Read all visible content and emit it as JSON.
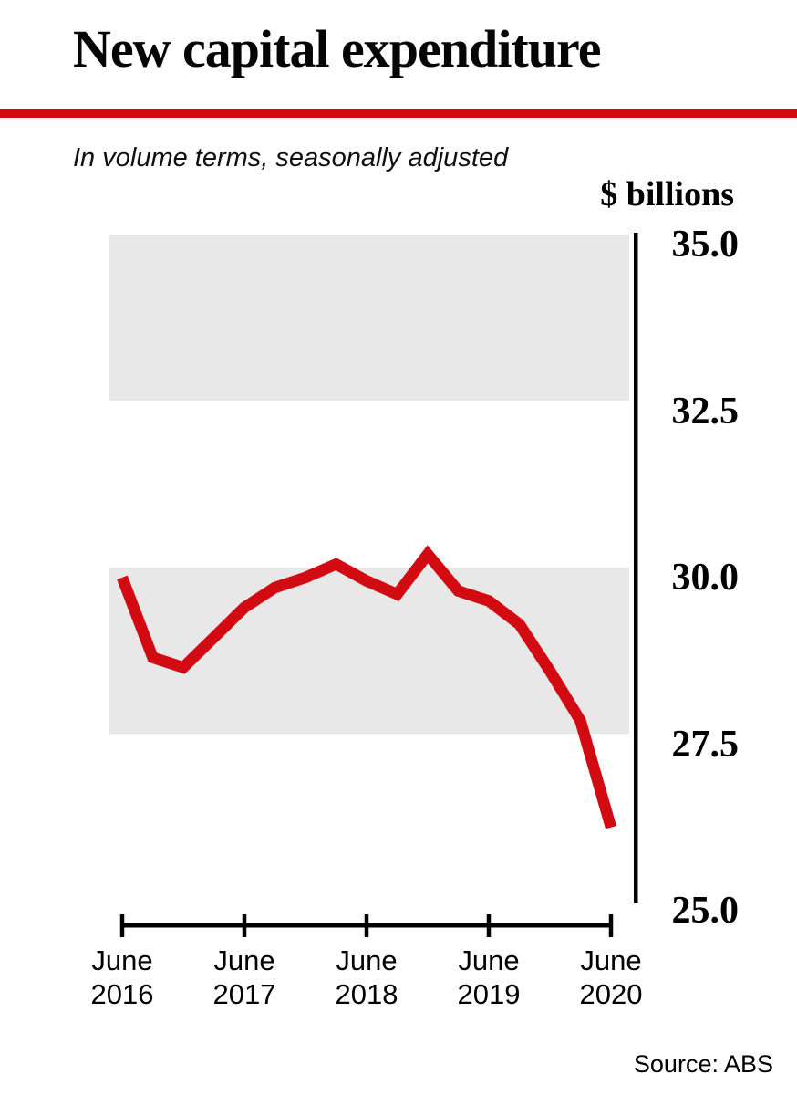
{
  "chart_data": {
    "type": "line",
    "title": "New capital expenditure",
    "subtitle": "In volume terms, seasonally adjusted",
    "axis_unit_label": "$ billions",
    "source": "Source: ABS",
    "categories": [
      "Jun 2016",
      "Sep 2016",
      "Dec 2016",
      "Mar 2017",
      "Jun 2017",
      "Sep 2017",
      "Dec 2017",
      "Mar 2018",
      "Jun 2018",
      "Sep 2018",
      "Dec 2018",
      "Mar 2019",
      "Jun 2019",
      "Sep 2019",
      "Dec 2019",
      "Mar 2020",
      "Jun 2020"
    ],
    "values": [
      29.85,
      28.65,
      28.5,
      28.95,
      29.4,
      29.7,
      29.85,
      30.05,
      29.8,
      29.6,
      30.2,
      29.65,
      29.5,
      29.15,
      28.45,
      27.7,
      26.1
    ],
    "ylabel": "$ billions",
    "ylim": [
      25.0,
      35.0
    ],
    "ytick_step": 2.5,
    "ytick_labels": [
      "35.0",
      "32.5",
      "30.0",
      "27.5",
      "25.0"
    ],
    "xtick_labels": [
      [
        "June",
        "2016"
      ],
      [
        "June",
        "2017"
      ],
      [
        "June",
        "2018"
      ],
      [
        "June",
        "2019"
      ],
      [
        "June",
        "2020"
      ]
    ],
    "xtick_positions": [
      0,
      4,
      8,
      12,
      16
    ],
    "grid": "alternating-horizontal-bands",
    "legend": "none",
    "colors": {
      "line": "#d20a12",
      "title_rule": "#d20a12",
      "band": "#e8e8e8",
      "axis": "#000000",
      "text": "#000000"
    }
  }
}
